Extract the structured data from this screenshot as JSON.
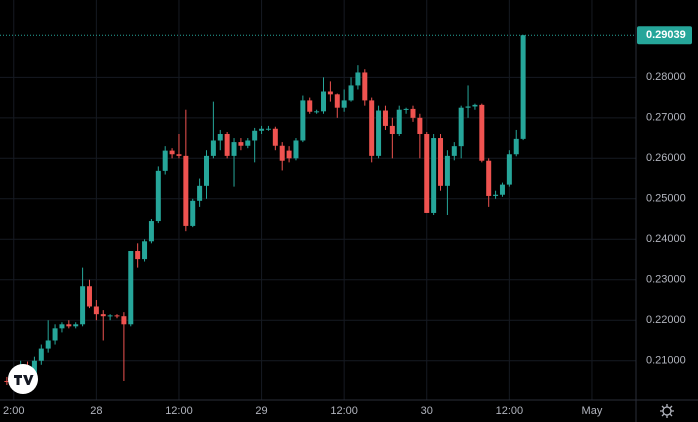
{
  "chart_data": {
    "type": "candlestick",
    "x": [
      11,
      12,
      13,
      14,
      15,
      16,
      17,
      18,
      19,
      20,
      21,
      22,
      23,
      24,
      25,
      26,
      27,
      28,
      29,
      30,
      31,
      32,
      33,
      34,
      35,
      36,
      37,
      38,
      39,
      40,
      41,
      42,
      43,
      44,
      45,
      46,
      47,
      48,
      49,
      50,
      51,
      52,
      53,
      54,
      55,
      56,
      57,
      58,
      59,
      60,
      61,
      62,
      63,
      64,
      65,
      66,
      67,
      68,
      69,
      70,
      71,
      72,
      73,
      74,
      75,
      76,
      77,
      78,
      79,
      80,
      81,
      82,
      83,
      84,
      85,
      86
    ],
    "open": [
      0.205,
      0.2048,
      0.207,
      0.2085,
      0.206,
      0.21,
      0.213,
      0.215,
      0.218,
      0.219,
      0.2185,
      0.219,
      0.2284,
      0.2234,
      0.2215,
      0.221,
      0.2212,
      0.221,
      0.219,
      0.2371,
      0.2351,
      0.2395,
      0.2445,
      0.2569,
      0.2619,
      0.261,
      0.2606,
      0.2433,
      0.2495,
      0.2532,
      0.2606,
      0.2644,
      0.266,
      0.2606,
      0.264,
      0.2631,
      0.2644,
      0.2668,
      0.2673,
      0.2673,
      0.2631,
      0.2619,
      0.26,
      0.2644,
      0.2743,
      0.2715,
      0.2716,
      0.2765,
      0.2758,
      0.2725,
      0.2743,
      0.278,
      0.2812,
      0.2743,
      0.2606,
      0.2718,
      0.268,
      0.266,
      0.272,
      0.2722,
      0.27,
      0.266,
      0.2465,
      0.265,
      0.2532,
      0.2606,
      0.263,
      0.2725,
      0.2728,
      0.2732,
      0.2594,
      0.2507,
      0.251,
      0.2535,
      0.261,
      0.2648
    ],
    "high": [
      0.206,
      0.2075,
      0.21,
      0.2098,
      0.211,
      0.214,
      0.22,
      0.219,
      0.2195,
      0.22,
      0.2195,
      0.233,
      0.23,
      0.225,
      0.2225,
      0.2215,
      0.2215,
      0.222,
      0.2371,
      0.239,
      0.24,
      0.245,
      0.258,
      0.263,
      0.2625,
      0.266,
      0.272,
      0.25,
      0.255,
      0.262,
      0.274,
      0.267,
      0.2665,
      0.265,
      0.265,
      0.265,
      0.2675,
      0.268,
      0.268,
      0.2678,
      0.264,
      0.263,
      0.265,
      0.2755,
      0.275,
      0.272,
      0.28,
      0.279,
      0.276,
      0.277,
      0.28,
      0.283,
      0.282,
      0.275,
      0.273,
      0.273,
      0.27,
      0.273,
      0.2725,
      0.273,
      0.271,
      0.2665,
      0.266,
      0.266,
      0.262,
      0.264,
      0.273,
      0.278,
      0.2735,
      0.2735,
      0.26,
      0.252,
      0.254,
      0.262,
      0.267,
      0.2905
    ],
    "low": [
      0.204,
      0.2035,
      0.206,
      0.205,
      0.2055,
      0.209,
      0.212,
      0.214,
      0.217,
      0.218,
      0.218,
      0.2185,
      0.223,
      0.22,
      0.215,
      0.22,
      0.2205,
      0.205,
      0.2185,
      0.233,
      0.2345,
      0.239,
      0.244,
      0.256,
      0.26,
      0.26,
      0.242,
      0.243,
      0.248,
      0.25,
      0.26,
      0.262,
      0.26,
      0.253,
      0.262,
      0.2625,
      0.259,
      0.266,
      0.2668,
      0.262,
      0.257,
      0.259,
      0.2595,
      0.264,
      0.271,
      0.271,
      0.271,
      0.274,
      0.27,
      0.2715,
      0.274,
      0.277,
      0.273,
      0.259,
      0.26,
      0.267,
      0.26,
      0.2655,
      0.271,
      0.269,
      0.26,
      0.2465,
      0.246,
      0.252,
      0.246,
      0.2595,
      0.26,
      0.27,
      0.272,
      0.259,
      0.248,
      0.25,
      0.2505,
      0.253,
      0.2605,
      0.2645
    ],
    "close": [
      0.2048,
      0.207,
      0.2085,
      0.206,
      0.21,
      0.213,
      0.215,
      0.218,
      0.219,
      0.2185,
      0.219,
      0.2284,
      0.2234,
      0.2215,
      0.221,
      0.2212,
      0.221,
      0.219,
      0.2371,
      0.2351,
      0.2395,
      0.2445,
      0.2569,
      0.2619,
      0.261,
      0.2606,
      0.2433,
      0.2495,
      0.2532,
      0.2606,
      0.2644,
      0.266,
      0.2606,
      0.264,
      0.2631,
      0.2644,
      0.2668,
      0.2673,
      0.2673,
      0.2631,
      0.2594,
      0.26,
      0.2644,
      0.2743,
      0.2715,
      0.2716,
      0.2765,
      0.2758,
      0.2725,
      0.2743,
      0.278,
      0.2812,
      0.2743,
      0.2606,
      0.2718,
      0.268,
      0.266,
      0.272,
      0.2722,
      0.27,
      0.266,
      0.2465,
      0.265,
      0.2532,
      0.2606,
      0.263,
      0.2725,
      0.2728,
      0.2732,
      0.2594,
      0.2507,
      0.251,
      0.2535,
      0.261,
      0.2648,
      0.2904
    ],
    "up_color": "#26a69a",
    "down_color": "#ef5350",
    "last_price": 0.29039,
    "xlim": [
      10,
      102.4
    ],
    "ylim": [
      0.2003,
      0.2991
    ],
    "xticks": [
      {
        "value": 12,
        "label": "2:00"
      },
      {
        "value": 24,
        "label": "28"
      },
      {
        "value": 36,
        "label": "12:00"
      },
      {
        "value": 48,
        "label": "29"
      },
      {
        "value": 60,
        "label": "12:00"
      },
      {
        "value": 72,
        "label": "30"
      },
      {
        "value": 84,
        "label": "12:00"
      },
      {
        "value": 96,
        "label": "May"
      }
    ],
    "yticks": [
      {
        "value": 0.21,
        "label": "0.21000"
      },
      {
        "value": 0.22,
        "label": "0.22000"
      },
      {
        "value": 0.23,
        "label": "0.23000"
      },
      {
        "value": 0.24,
        "label": "0.24000"
      },
      {
        "value": 0.25,
        "label": "0.25000"
      },
      {
        "value": 0.26,
        "label": "0.26000"
      },
      {
        "value": 0.27,
        "label": "0.27000"
      },
      {
        "value": 0.28,
        "label": "0.28000"
      }
    ],
    "grid": true
  }
}
